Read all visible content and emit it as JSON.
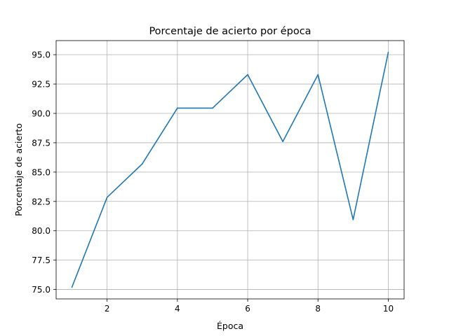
{
  "chart_data": {
    "type": "line",
    "title": "Porcentaje de acierto por época",
    "xlabel": "Época",
    "ylabel": "Porcentaje de acierto",
    "xlim": [
      0.55,
      10.45
    ],
    "ylim": [
      74.2,
      96.2
    ],
    "x_ticks": [
      2,
      4,
      6,
      8,
      10
    ],
    "x_tick_labels": [
      "2",
      "4",
      "6",
      "8",
      "10"
    ],
    "y_ticks": [
      75.0,
      77.5,
      80.0,
      82.5,
      85.0,
      87.5,
      90.0,
      92.5,
      95.0
    ],
    "y_tick_labels": [
      "75.0",
      "77.5",
      "80.0",
      "82.5",
      "85.0",
      "87.5",
      "90.0",
      "92.5",
      "95.0"
    ],
    "grid": true,
    "series": [
      {
        "color": "#1f77b4",
        "x": [
          1,
          2,
          3,
          4,
          5,
          6,
          7,
          8,
          9,
          10
        ],
        "y": [
          75.2,
          82.85,
          85.7,
          90.45,
          90.45,
          93.3,
          87.6,
          93.3,
          80.95,
          95.2
        ]
      }
    ]
  }
}
